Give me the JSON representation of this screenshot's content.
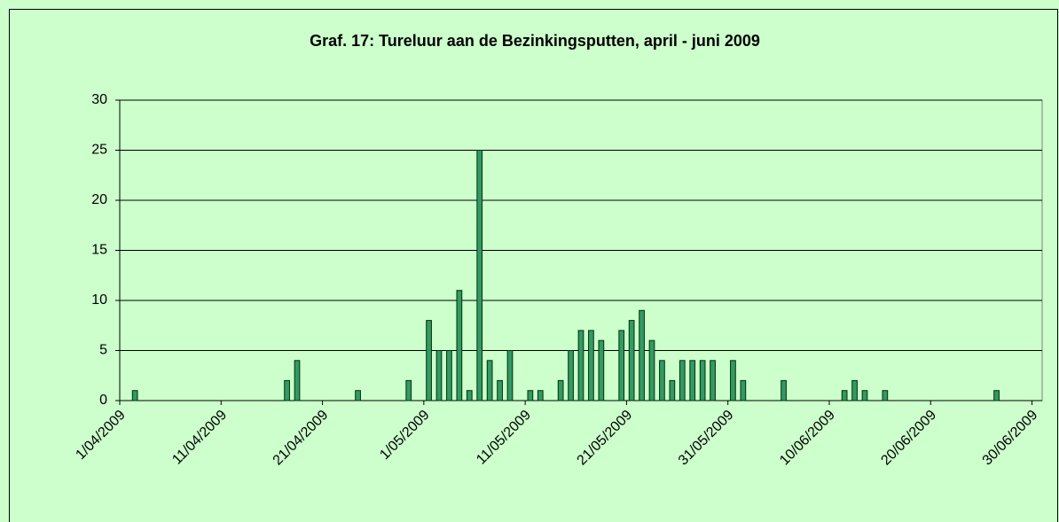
{
  "chart_data": {
    "type": "bar",
    "title": "Graf. 17: Tureluur aan de Bezinkingsputten, april - juni 2009",
    "categories": [
      "1/04/2009",
      null,
      null,
      null,
      null,
      null,
      null,
      null,
      null,
      null,
      "11/04/2009",
      null,
      null,
      null,
      null,
      null,
      null,
      null,
      null,
      null,
      "21/04/2009",
      null,
      null,
      null,
      null,
      null,
      null,
      null,
      null,
      null,
      "1/05/2009",
      null,
      null,
      null,
      null,
      null,
      null,
      null,
      null,
      null,
      "11/05/2009",
      null,
      null,
      null,
      null,
      null,
      null,
      null,
      null,
      null,
      "21/05/2009",
      null,
      null,
      null,
      null,
      null,
      null,
      null,
      null,
      null,
      "31/05/2009",
      null,
      null,
      null,
      null,
      null,
      null,
      null,
      null,
      null,
      "10/06/2009",
      null,
      null,
      null,
      null,
      null,
      null,
      null,
      null,
      null,
      "20/06/2009",
      null,
      null,
      null,
      null,
      null,
      null,
      null,
      null,
      null,
      "30/06/2009"
    ],
    "values": [
      0,
      1,
      0,
      0,
      0,
      0,
      0,
      0,
      0,
      0,
      0,
      0,
      0,
      0,
      0,
      0,
      2,
      4,
      0,
      0,
      0,
      0,
      0,
      1,
      0,
      0,
      0,
      0,
      2,
      0,
      8,
      5,
      5,
      11,
      1,
      25,
      4,
      2,
      5,
      0,
      1,
      1,
      0,
      2,
      5,
      7,
      7,
      6,
      0,
      7,
      8,
      9,
      6,
      4,
      2,
      4,
      4,
      4,
      4,
      0,
      4,
      2,
      0,
      0,
      0,
      2,
      0,
      0,
      0,
      0,
      0,
      1,
      2,
      1,
      0,
      1,
      0,
      0,
      0,
      0,
      0,
      0,
      0,
      0,
      0,
      0,
      1,
      0,
      0,
      0,
      0
    ],
    "color": "#339966",
    "ylim": [
      0,
      30
    ],
    "yticks": [
      0,
      5,
      10,
      15,
      20,
      25,
      30
    ],
    "grid": true
  }
}
